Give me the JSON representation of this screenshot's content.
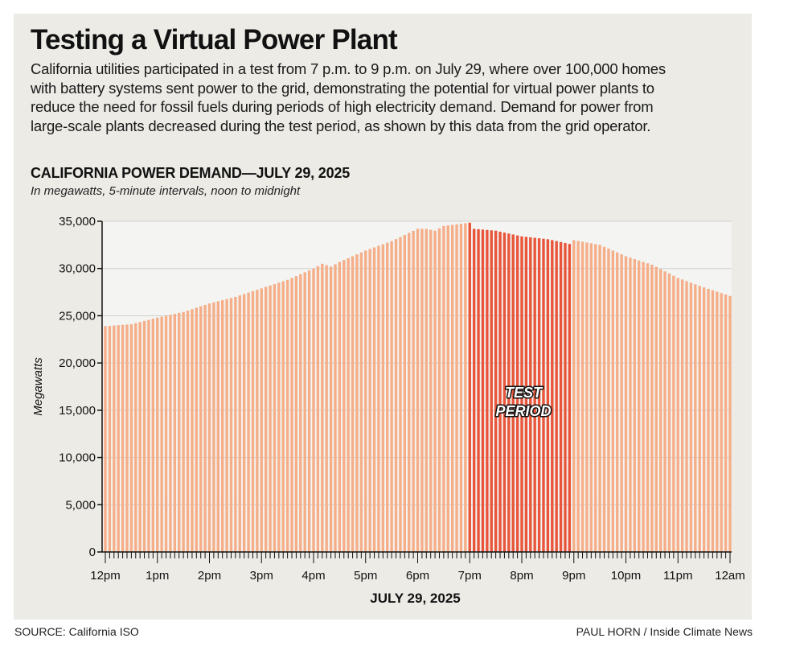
{
  "headline": "Testing a Virtual Power Plant",
  "intro": "California utilities participated in a test from 7 p.m. to 9 p.m. on July 29, where over 100,000 homes with battery systems sent power to the grid, demonstrating the potential for virtual power plants to reduce the need for fossil fuels during periods of high electricity demand. Demand for power from large-scale plants decreased during the test period, as shown by this data from the grid operator.",
  "footer": {
    "source": "SOURCE: California ISO",
    "credit": "PAUL HORN / Inside Climate News"
  },
  "colors": {
    "background": "#ecebe6",
    "plot_background": "#f4f4f2",
    "bar": "#f5ae88",
    "bar_highlight": "#e8553a",
    "gridline": "#cfcfcf",
    "axis": "#111111"
  },
  "chart_data": {
    "type": "bar",
    "title": "CALIFORNIA POWER DEMAND—JULY 29, 2025",
    "subtitle": "In megawatts, 5-minute intervals, noon to midnight",
    "xlabel": "JULY 29, 2025",
    "ylabel": "Megawatts",
    "ylim": [
      0,
      35000
    ],
    "y_ticks": [
      0,
      5000,
      10000,
      15000,
      20000,
      25000,
      30000,
      35000
    ],
    "y_tick_labels": [
      "0",
      "5,000",
      "10,000",
      "15,000",
      "20,000",
      "25,000",
      "30,000",
      "35,000"
    ],
    "x_tick_labels": [
      "12pm",
      "1pm",
      "2pm",
      "3pm",
      "4pm",
      "5pm",
      "6pm",
      "7pm",
      "8pm",
      "9pm",
      "10pm",
      "11pm",
      "12am"
    ],
    "interval_minutes": 5,
    "grid": true,
    "highlight": {
      "label_line1": "TEST",
      "label_line2": "PERIOD",
      "start": "7pm",
      "end": "9pm"
    },
    "key_points": [
      {
        "time": "12pm",
        "value": 23900
      },
      {
        "time": "12:30pm",
        "value": 24100
      },
      {
        "time": "1pm",
        "value": 24800
      },
      {
        "time": "1:30pm",
        "value": 25400
      },
      {
        "time": "2pm",
        "value": 26300
      },
      {
        "time": "2:30pm",
        "value": 27000
      },
      {
        "time": "3pm",
        "value": 27900
      },
      {
        "time": "3:30pm",
        "value": 28800
      },
      {
        "time": "4pm",
        "value": 30000
      },
      {
        "time": "4:10pm",
        "value": 30500
      },
      {
        "time": "4:20pm",
        "value": 30200
      },
      {
        "time": "4:30pm",
        "value": 30700
      },
      {
        "time": "5pm",
        "value": 31900
      },
      {
        "time": "5:30pm",
        "value": 32900
      },
      {
        "time": "6pm",
        "value": 34200
      },
      {
        "time": "6:10pm",
        "value": 34200
      },
      {
        "time": "6:20pm",
        "value": 34000
      },
      {
        "time": "6:30pm",
        "value": 34500
      },
      {
        "time": "7pm",
        "value": 34850
      },
      {
        "time": "7:05pm",
        "value": 34200
      },
      {
        "time": "7:30pm",
        "value": 34000
      },
      {
        "time": "8pm",
        "value": 33400
      },
      {
        "time": "8:30pm",
        "value": 33100
      },
      {
        "time": "8:55pm",
        "value": 32600
      },
      {
        "time": "9pm",
        "value": 33000
      },
      {
        "time": "9:30pm",
        "value": 32500
      },
      {
        "time": "10pm",
        "value": 31300
      },
      {
        "time": "10:30pm",
        "value": 30400
      },
      {
        "time": "11pm",
        "value": 29000
      },
      {
        "time": "11:30pm",
        "value": 28000
      },
      {
        "time": "12am",
        "value": 27100
      }
    ]
  }
}
